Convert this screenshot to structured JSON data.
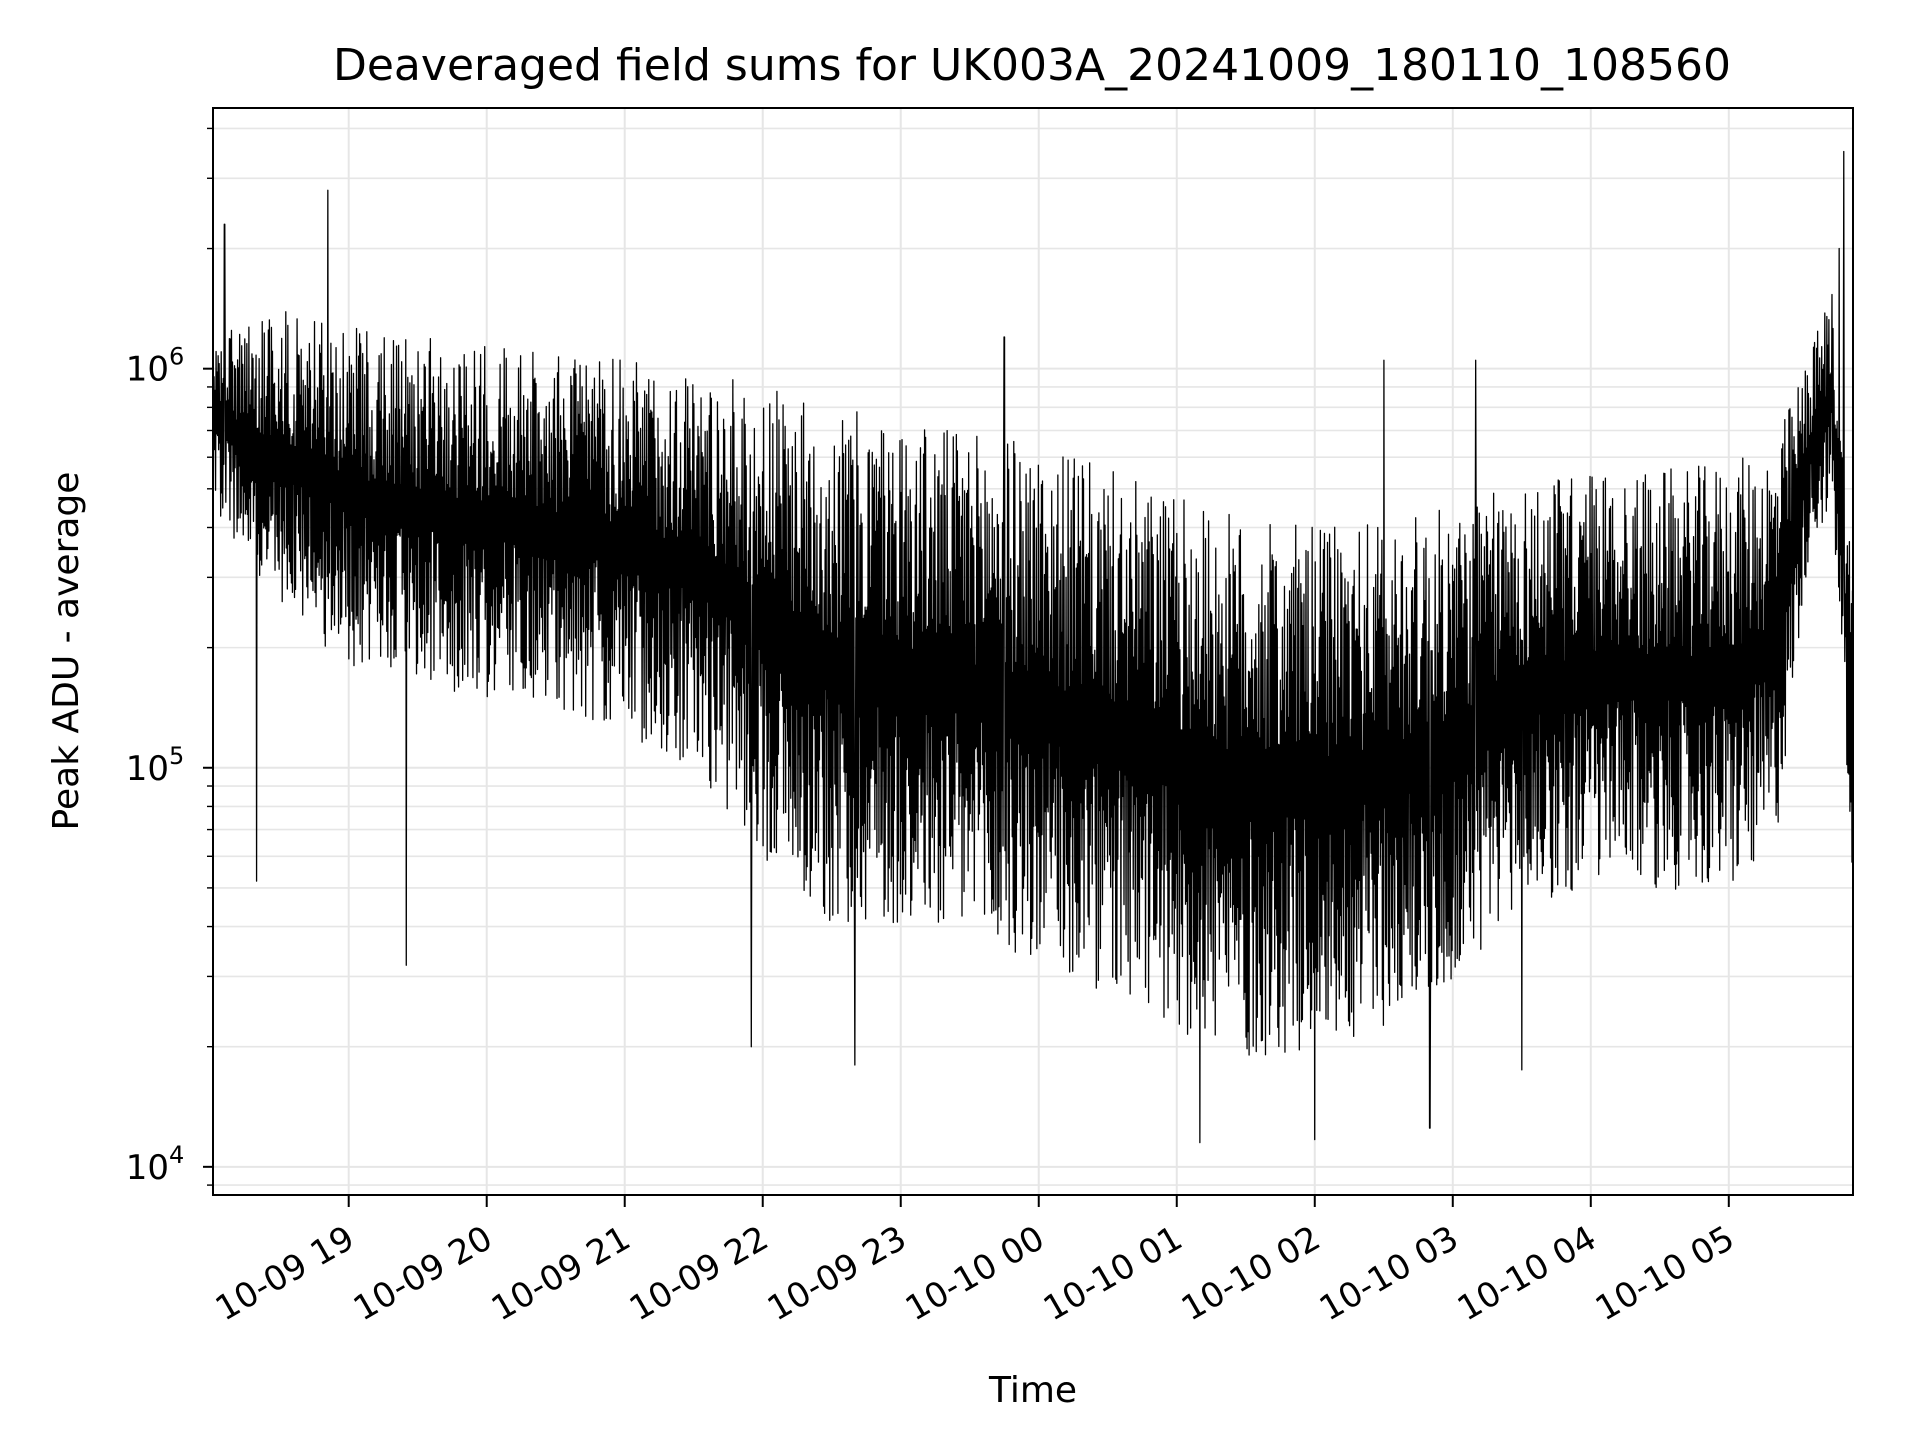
{
  "chart_data": {
    "type": "line",
    "title": "Deaveraged field sums for UK003A_20241009_180110_108560",
    "xlabel": "Time",
    "ylabel": "Peak ADU - average",
    "yscale": "log",
    "grid": true,
    "line_color": "#000000",
    "grid_color": "#e6e6e6",
    "xlim": [
      "2024-10-09 18:01",
      "2024-10-10 05:54"
    ],
    "ylim": [
      8500,
      4500000
    ],
    "x_ticks": [
      {
        "t": "2024-10-09 19:00",
        "label": "10-09 19"
      },
      {
        "t": "2024-10-09 20:00",
        "label": "10-09 20"
      },
      {
        "t": "2024-10-09 21:00",
        "label": "10-09 21"
      },
      {
        "t": "2024-10-09 22:00",
        "label": "10-09 22"
      },
      {
        "t": "2024-10-09 23:00",
        "label": "10-09 23"
      },
      {
        "t": "2024-10-10 00:00",
        "label": "10-10 00"
      },
      {
        "t": "2024-10-10 01:00",
        "label": "10-10 01"
      },
      {
        "t": "2024-10-10 02:00",
        "label": "10-10 02"
      },
      {
        "t": "2024-10-10 03:00",
        "label": "10-10 03"
      },
      {
        "t": "2024-10-10 04:00",
        "label": "10-10 04"
      },
      {
        "t": "2024-10-10 05:00",
        "label": "10-10 05"
      }
    ],
    "y_ticks": [
      {
        "value": 10000,
        "base": "10",
        "exp": "4"
      },
      {
        "value": 100000,
        "base": "10",
        "exp": "5"
      },
      {
        "value": 1000000,
        "base": "10",
        "exp": "6"
      }
    ],
    "series": [
      {
        "envelope_x": [
          "2024-10-09 18:01",
          "2024-10-09 18:30",
          "2024-10-09 19:00",
          "2024-10-09 19:30",
          "2024-10-09 20:00",
          "2024-10-09 20:30",
          "2024-10-09 21:00",
          "2024-10-09 21:30",
          "2024-10-09 22:00",
          "2024-10-09 22:30",
          "2024-10-09 23:00",
          "2024-10-09 23:30",
          "2024-10-10 00:00",
          "2024-10-10 00:30",
          "2024-10-10 01:00",
          "2024-10-10 01:30",
          "2024-10-10 02:00",
          "2024-10-10 02:30",
          "2024-10-10 03:00",
          "2024-10-10 03:30",
          "2024-10-10 04:00",
          "2024-10-10 04:30",
          "2024-10-10 05:00",
          "2024-10-10 05:20",
          "2024-10-10 05:35",
          "2024-10-10 05:45",
          "2024-10-10 05:54"
        ],
        "envelope_high": [
          1200000,
          1400000,
          1300000,
          1200000,
          1150000,
          1100000,
          1050000,
          1000000,
          900000,
          800000,
          750000,
          700000,
          650000,
          560000,
          480000,
          420000,
          400000,
          420000,
          450000,
          520000,
          560000,
          560000,
          580000,
          650000,
          1100000,
          1600000,
          300000
        ],
        "envelope_low": [
          450000,
          250000,
          180000,
          160000,
          150000,
          140000,
          120000,
          100000,
          60000,
          40000,
          40000,
          35000,
          30000,
          26000,
          22000,
          18000,
          20000,
          22000,
          28000,
          45000,
          50000,
          50000,
          48000,
          60000,
          350000,
          450000,
          50000
        ],
        "spikes_high": [
          {
            "t": "2024-10-09 18:51",
            "value": 2800000
          },
          {
            "t": "2024-10-09 18:06",
            "value": 2300000
          },
          {
            "t": "2024-10-09 23:45",
            "value": 1200000
          },
          {
            "t": "2024-10-10 02:30",
            "value": 1050000
          },
          {
            "t": "2024-10-10 03:10",
            "value": 1050000
          },
          {
            "t": "2024-10-10 05:50",
            "value": 3500000
          },
          {
            "t": "2024-10-10 05:48",
            "value": 2000000
          }
        ],
        "spikes_low": [
          {
            "t": "2024-10-09 18:20",
            "value": 52000
          },
          {
            "t": "2024-10-09 19:25",
            "value": 32000
          },
          {
            "t": "2024-10-09 21:55",
            "value": 20000
          },
          {
            "t": "2024-10-09 22:40",
            "value": 18000
          },
          {
            "t": "2024-10-10 01:10",
            "value": 11500
          },
          {
            "t": "2024-10-10 02:00",
            "value": 11700
          },
          {
            "t": "2024-10-10 02:50",
            "value": 12500
          },
          {
            "t": "2024-10-10 03:30",
            "value": 17500
          }
        ]
      }
    ]
  }
}
